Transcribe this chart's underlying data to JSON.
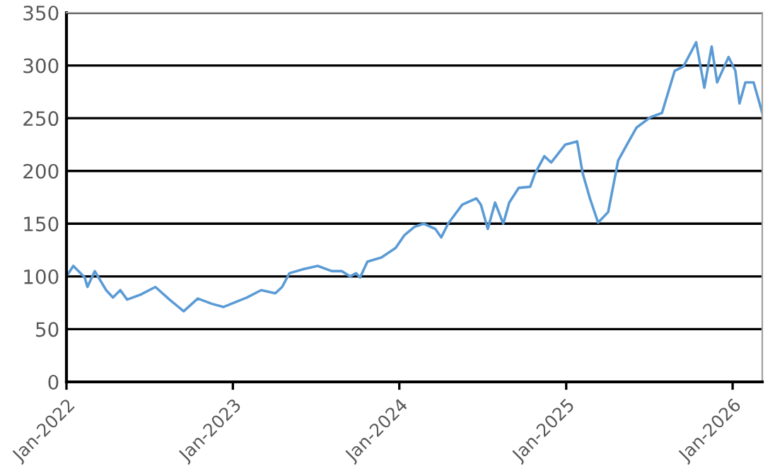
{
  "chart_data": {
    "type": "line",
    "x": [
      "2022-01-01",
      "2022-01-16",
      "2022-02-10",
      "2022-02-16",
      "2022-03-04",
      "2022-03-29",
      "2022-04-13",
      "2022-04-29",
      "2022-05-14",
      "2022-06-14",
      "2022-07-15",
      "2022-08-15",
      "2022-09-15",
      "2022-10-16",
      "2022-11-16",
      "2022-12-11",
      "2023-02-01",
      "2023-03-04",
      "2023-04-04",
      "2023-04-19",
      "2023-05-05",
      "2023-06-05",
      "2023-07-06",
      "2023-08-06",
      "2023-08-28",
      "2023-09-15",
      "2023-09-28",
      "2023-10-07",
      "2023-10-23",
      "2023-11-23",
      "2023-12-24",
      "2024-01-12",
      "2024-02-03",
      "2024-02-24",
      "2024-03-20",
      "2024-04-02",
      "2024-04-17",
      "2024-05-18",
      "2024-06-18",
      "2024-06-28",
      "2024-07-13",
      "2024-07-29",
      "2024-08-16",
      "2024-08-29",
      "2024-09-19",
      "2024-10-14",
      "2024-10-24",
      "2024-11-14",
      "2024-11-29",
      "2024-12-30",
      "2025-01-25",
      "2025-02-06",
      "2025-02-22",
      "2025-03-12",
      "2025-04-03",
      "2025-04-25",
      "2025-05-13",
      "2025-06-04",
      "2025-07-05",
      "2025-07-30",
      "2025-08-27",
      "2025-09-15",
      "2025-10-13",
      "2025-10-31",
      "2025-11-16",
      "2025-11-28",
      "2025-12-23",
      "2026-01-07",
      "2026-01-16",
      "2026-01-29",
      "2026-02-16",
      "2026-03-07"
    ],
    "series": [
      {
        "color": "#5b9bd5",
        "values": [
          100,
          110,
          99,
          90,
          105,
          87,
          80,
          87,
          78,
          83,
          90,
          78,
          67,
          79,
          74,
          71,
          80,
          87,
          84,
          90,
          103,
          107,
          110,
          105,
          105,
          100,
          103,
          99,
          114,
          118,
          127,
          139,
          147,
          150,
          145,
          137,
          150,
          168,
          174,
          168,
          145,
          170,
          150,
          170,
          184,
          185,
          197,
          214,
          208,
          225,
          228,
          198,
          174,
          151,
          161,
          210,
          224,
          241,
          251,
          255,
          295,
          299,
          322,
          279,
          318,
          284,
          308,
          295,
          264,
          284,
          284,
          255
        ]
      }
    ],
    "xlim": [
      "2022-01-01",
      "2026-03-07"
    ],
    "xticks": [
      {
        "value": "2022-01-01",
        "label": "Jan-2022"
      },
      {
        "value": "2023-01-01",
        "label": "Jan-2023"
      },
      {
        "value": "2024-01-01",
        "label": "Jan-2024"
      },
      {
        "value": "2025-01-01",
        "label": "Jan-2025"
      },
      {
        "value": "2026-01-01",
        "label": "Jan-2026"
      }
    ],
    "ylim": [
      0,
      350
    ],
    "yticks": [
      0,
      50,
      100,
      150,
      200,
      250,
      300,
      350
    ],
    "grid": "y",
    "legend": false,
    "marker": "none",
    "line_style": "solid"
  }
}
